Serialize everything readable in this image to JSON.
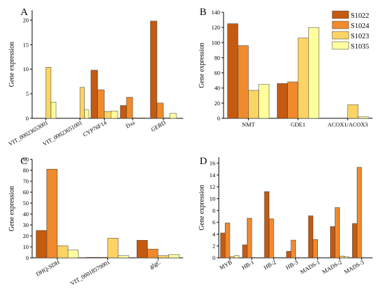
{
  "colors": {
    "S1022": "#c55a11",
    "S1024": "#f08a2c",
    "S1023": "#fbd465",
    "S1035": "#ffff9e",
    "stroke": "#333333"
  },
  "legend": [
    "S1022",
    "S1024",
    "S1023",
    "S1035"
  ],
  "chart_data": [
    {
      "panel": "A",
      "type": "bar",
      "ylabel": "Gene expression",
      "ylim": [
        0,
        22
      ],
      "yticks": [
        0,
        5,
        10,
        15,
        20
      ],
      "categories": [
        "VIT_00023653001",
        "VIT_00023651001",
        "CYP76F14",
        "Dxs",
        "GERD"
      ],
      "series": [
        {
          "name": "S1022",
          "values": [
            0,
            0,
            9.8,
            2.6,
            19.8
          ]
        },
        {
          "name": "S1024",
          "values": [
            0,
            0,
            5.8,
            4.3,
            3.1
          ]
        },
        {
          "name": "S1023",
          "values": [
            10.4,
            6.3,
            1.4,
            0.1,
            0.1
          ]
        },
        {
          "name": "S1035",
          "values": [
            3.3,
            1.7,
            1.5,
            0.1,
            1.0
          ]
        }
      ]
    },
    {
      "panel": "B",
      "type": "bar",
      "ylabel": "Gene expression",
      "ylim": [
        0,
        140
      ],
      "yticks": [
        0,
        20,
        40,
        60,
        80,
        100,
        120,
        140
      ],
      "categories": [
        "NMT",
        "GDE1",
        "ACOX1/ACOX3"
      ],
      "series": [
        {
          "name": "S1022",
          "values": [
            125,
            46,
            0
          ]
        },
        {
          "name": "S1024",
          "values": [
            96,
            48,
            0
          ]
        },
        {
          "name": "S1023",
          "values": [
            37,
            106,
            18
          ]
        },
        {
          "name": "S1035",
          "values": [
            45,
            120,
            2
          ]
        }
      ]
    },
    {
      "panel": "C",
      "type": "bar",
      "ylabel": "Gene expression",
      "ylim": [
        0,
        90
      ],
      "yticks": [
        0,
        10,
        20,
        30,
        40,
        50,
        60,
        70,
        80,
        90
      ],
      "categories": [
        "DHQ-SDH",
        "VIT_00018579001",
        "glgC"
      ],
      "series": [
        {
          "name": "S1022",
          "values": [
            25,
            0.5,
            16
          ]
        },
        {
          "name": "S1024",
          "values": [
            81,
            0.5,
            8
          ]
        },
        {
          "name": "S1023",
          "values": [
            11,
            18,
            2
          ]
        },
        {
          "name": "S1035",
          "values": [
            7,
            2,
            3
          ]
        }
      ]
    },
    {
      "panel": "D",
      "type": "bar",
      "ylabel": "Gene expression",
      "ylim": [
        0,
        17
      ],
      "yticks": [
        0,
        2,
        4,
        6,
        8,
        10,
        12,
        14,
        16
      ],
      "categories": [
        "MYB",
        "HB-1",
        "HB-2",
        "HB-3",
        "MADS-1",
        "MADS-2",
        "MADS-3"
      ],
      "series": [
        {
          "name": "S1022",
          "values": [
            4.2,
            2.2,
            11.2,
            1.1,
            7.1,
            5.3,
            5.8
          ]
        },
        {
          "name": "S1024",
          "values": [
            5.9,
            6.7,
            6.6,
            3.0,
            3.1,
            8.5,
            15.3
          ]
        },
        {
          "name": "S1023",
          "values": [
            0.2,
            0,
            0,
            0,
            0,
            0.3,
            0
          ]
        },
        {
          "name": "S1035",
          "values": [
            0.4,
            0,
            0,
            0,
            0,
            0.2,
            0
          ]
        }
      ]
    }
  ]
}
